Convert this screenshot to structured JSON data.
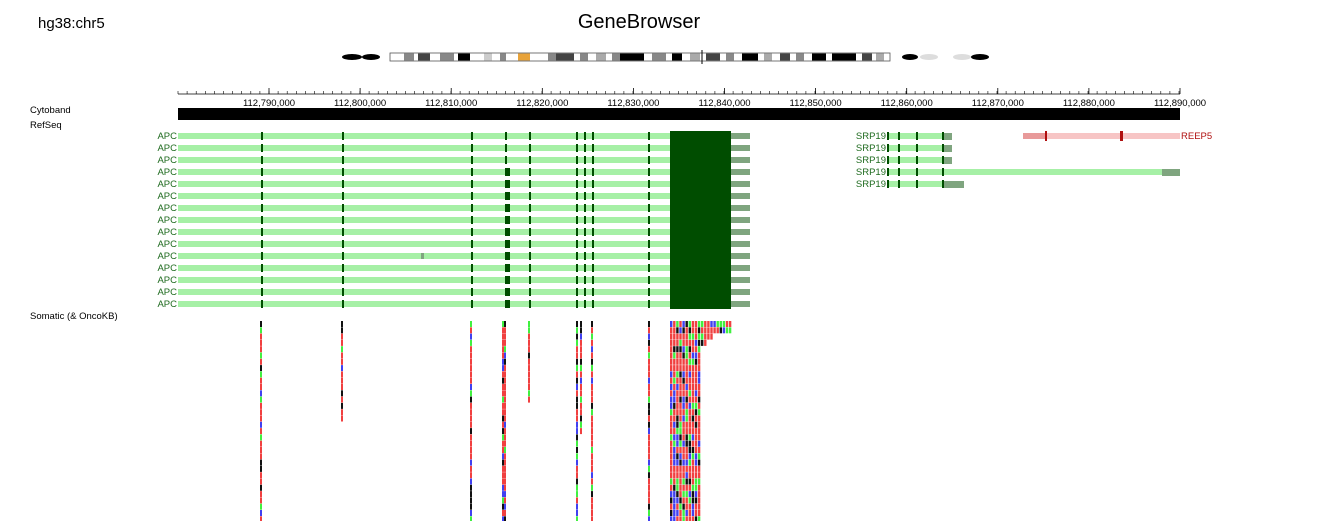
{
  "header": {
    "genome": "hg38:chr5",
    "title": "GeneBrowser"
  },
  "tracks": {
    "cytoband": "Cytoband",
    "refseq": "RefSeq",
    "somatic": "Somatic (& OncoKB)"
  },
  "ruler": {
    "ticks": [
      "112,790,000",
      "112,800,000",
      "112,810,000",
      "112,820,000",
      "112,830,000",
      "112,840,000",
      "112,850,000",
      "112,860,000",
      "112,870,000",
      "112,880,000",
      "112,890,000"
    ]
  },
  "colors": {
    "exon_dark": "#004d00",
    "transcript": "#a6f0a6",
    "utr": "#7fa57f",
    "srp_label": "#1f6b1f",
    "reep_line": "#f7c5c5",
    "reep_exon": "#b01010",
    "reep_label": "#b01010",
    "mut_red": "#f04040",
    "mut_green": "#40f040",
    "mut_blue": "#4040f0",
    "mut_black": "#111111"
  },
  "genes": {
    "apc_label": "APC",
    "apc_count": 15,
    "srp_label": "SRP19",
    "srp_count": 5,
    "reep_label": "REEP5"
  }
}
